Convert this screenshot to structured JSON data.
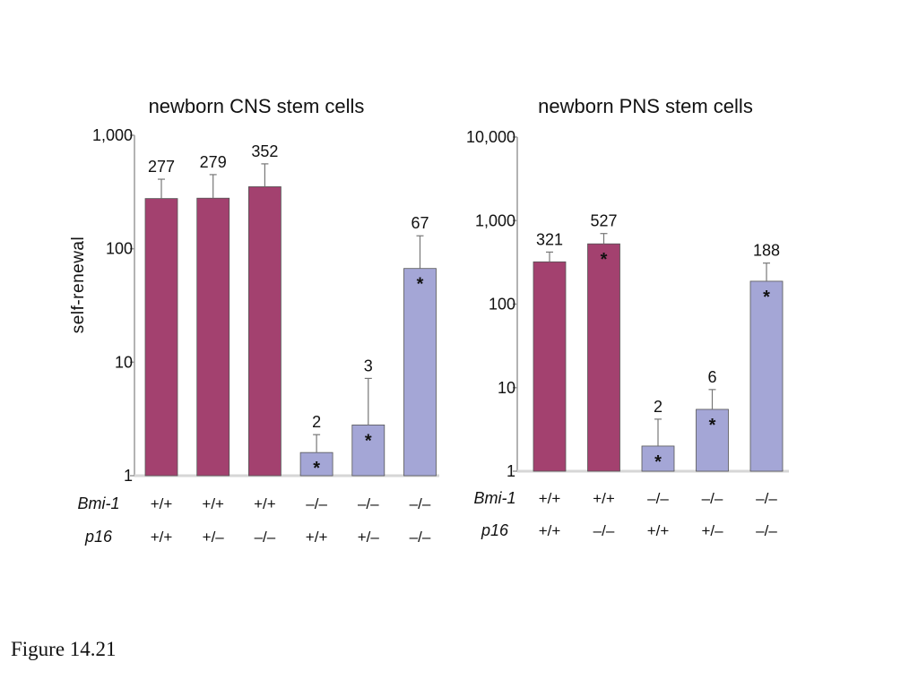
{
  "figure_caption": "Figure 14.21",
  "colors": {
    "wildtype_bar": "#a3416f",
    "mutant_bar": "#a4a6d6",
    "axis": "#9a9a9a",
    "text": "#111111"
  },
  "chart_data": [
    {
      "type": "bar",
      "title": "newborn CNS stem cells",
      "ylabel": "self-renewal",
      "yscale": "log",
      "ylim": [
        1,
        1000
      ],
      "yticks": [
        1,
        10,
        100,
        1000
      ],
      "ytick_labels": [
        "1",
        "10",
        "100",
        "1,000"
      ],
      "values": [
        277,
        279,
        352,
        2,
        3,
        67
      ],
      "plotted_means": [
        277,
        279,
        352,
        1.6,
        2.8,
        67
      ],
      "error_upper": [
        410,
        450,
        560,
        2.3,
        7.2,
        130
      ],
      "value_labels": [
        "277",
        "279",
        "352",
        "2",
        "3",
        "67"
      ],
      "bar_colors": [
        "wildtype",
        "wildtype",
        "wildtype",
        "mutant",
        "mutant",
        "mutant"
      ],
      "significant": [
        false,
        false,
        false,
        true,
        true,
        true
      ],
      "genotype_rows": [
        {
          "gene": "Bmi-1",
          "values": [
            "+/+",
            "+/+",
            "+/+",
            "–/–",
            "–/–",
            "–/–"
          ]
        },
        {
          "gene": "p16",
          "values": [
            "+/+",
            "+/–",
            "–/–",
            "+/+",
            "+/–",
            "–/–"
          ]
        }
      ]
    },
    {
      "type": "bar",
      "title": "newborn PNS stem cells",
      "ylabel": "",
      "yscale": "log",
      "ylim": [
        1,
        10000
      ],
      "yticks": [
        1,
        10,
        100,
        1000,
        10000
      ],
      "ytick_labels": [
        "1",
        "10",
        "100",
        "1,000",
        "10,000"
      ],
      "values": [
        321,
        527,
        2,
        6,
        188
      ],
      "plotted_means": [
        321,
        527,
        2,
        5.5,
        188
      ],
      "error_upper": [
        420,
        700,
        4.2,
        9.5,
        310
      ],
      "value_labels": [
        "321",
        "527",
        "2",
        "6",
        "188"
      ],
      "bar_colors": [
        "wildtype",
        "wildtype",
        "mutant",
        "mutant",
        "mutant"
      ],
      "significant": [
        false,
        true,
        true,
        true,
        true
      ],
      "genotype_rows": [
        {
          "gene": "Bmi-1",
          "values": [
            "+/+",
            "+/+",
            "–/–",
            "–/–",
            "–/–"
          ]
        },
        {
          "gene": "p16",
          "values": [
            "+/+",
            "–/–",
            "+/+",
            "+/–",
            "–/–"
          ]
        }
      ]
    }
  ]
}
